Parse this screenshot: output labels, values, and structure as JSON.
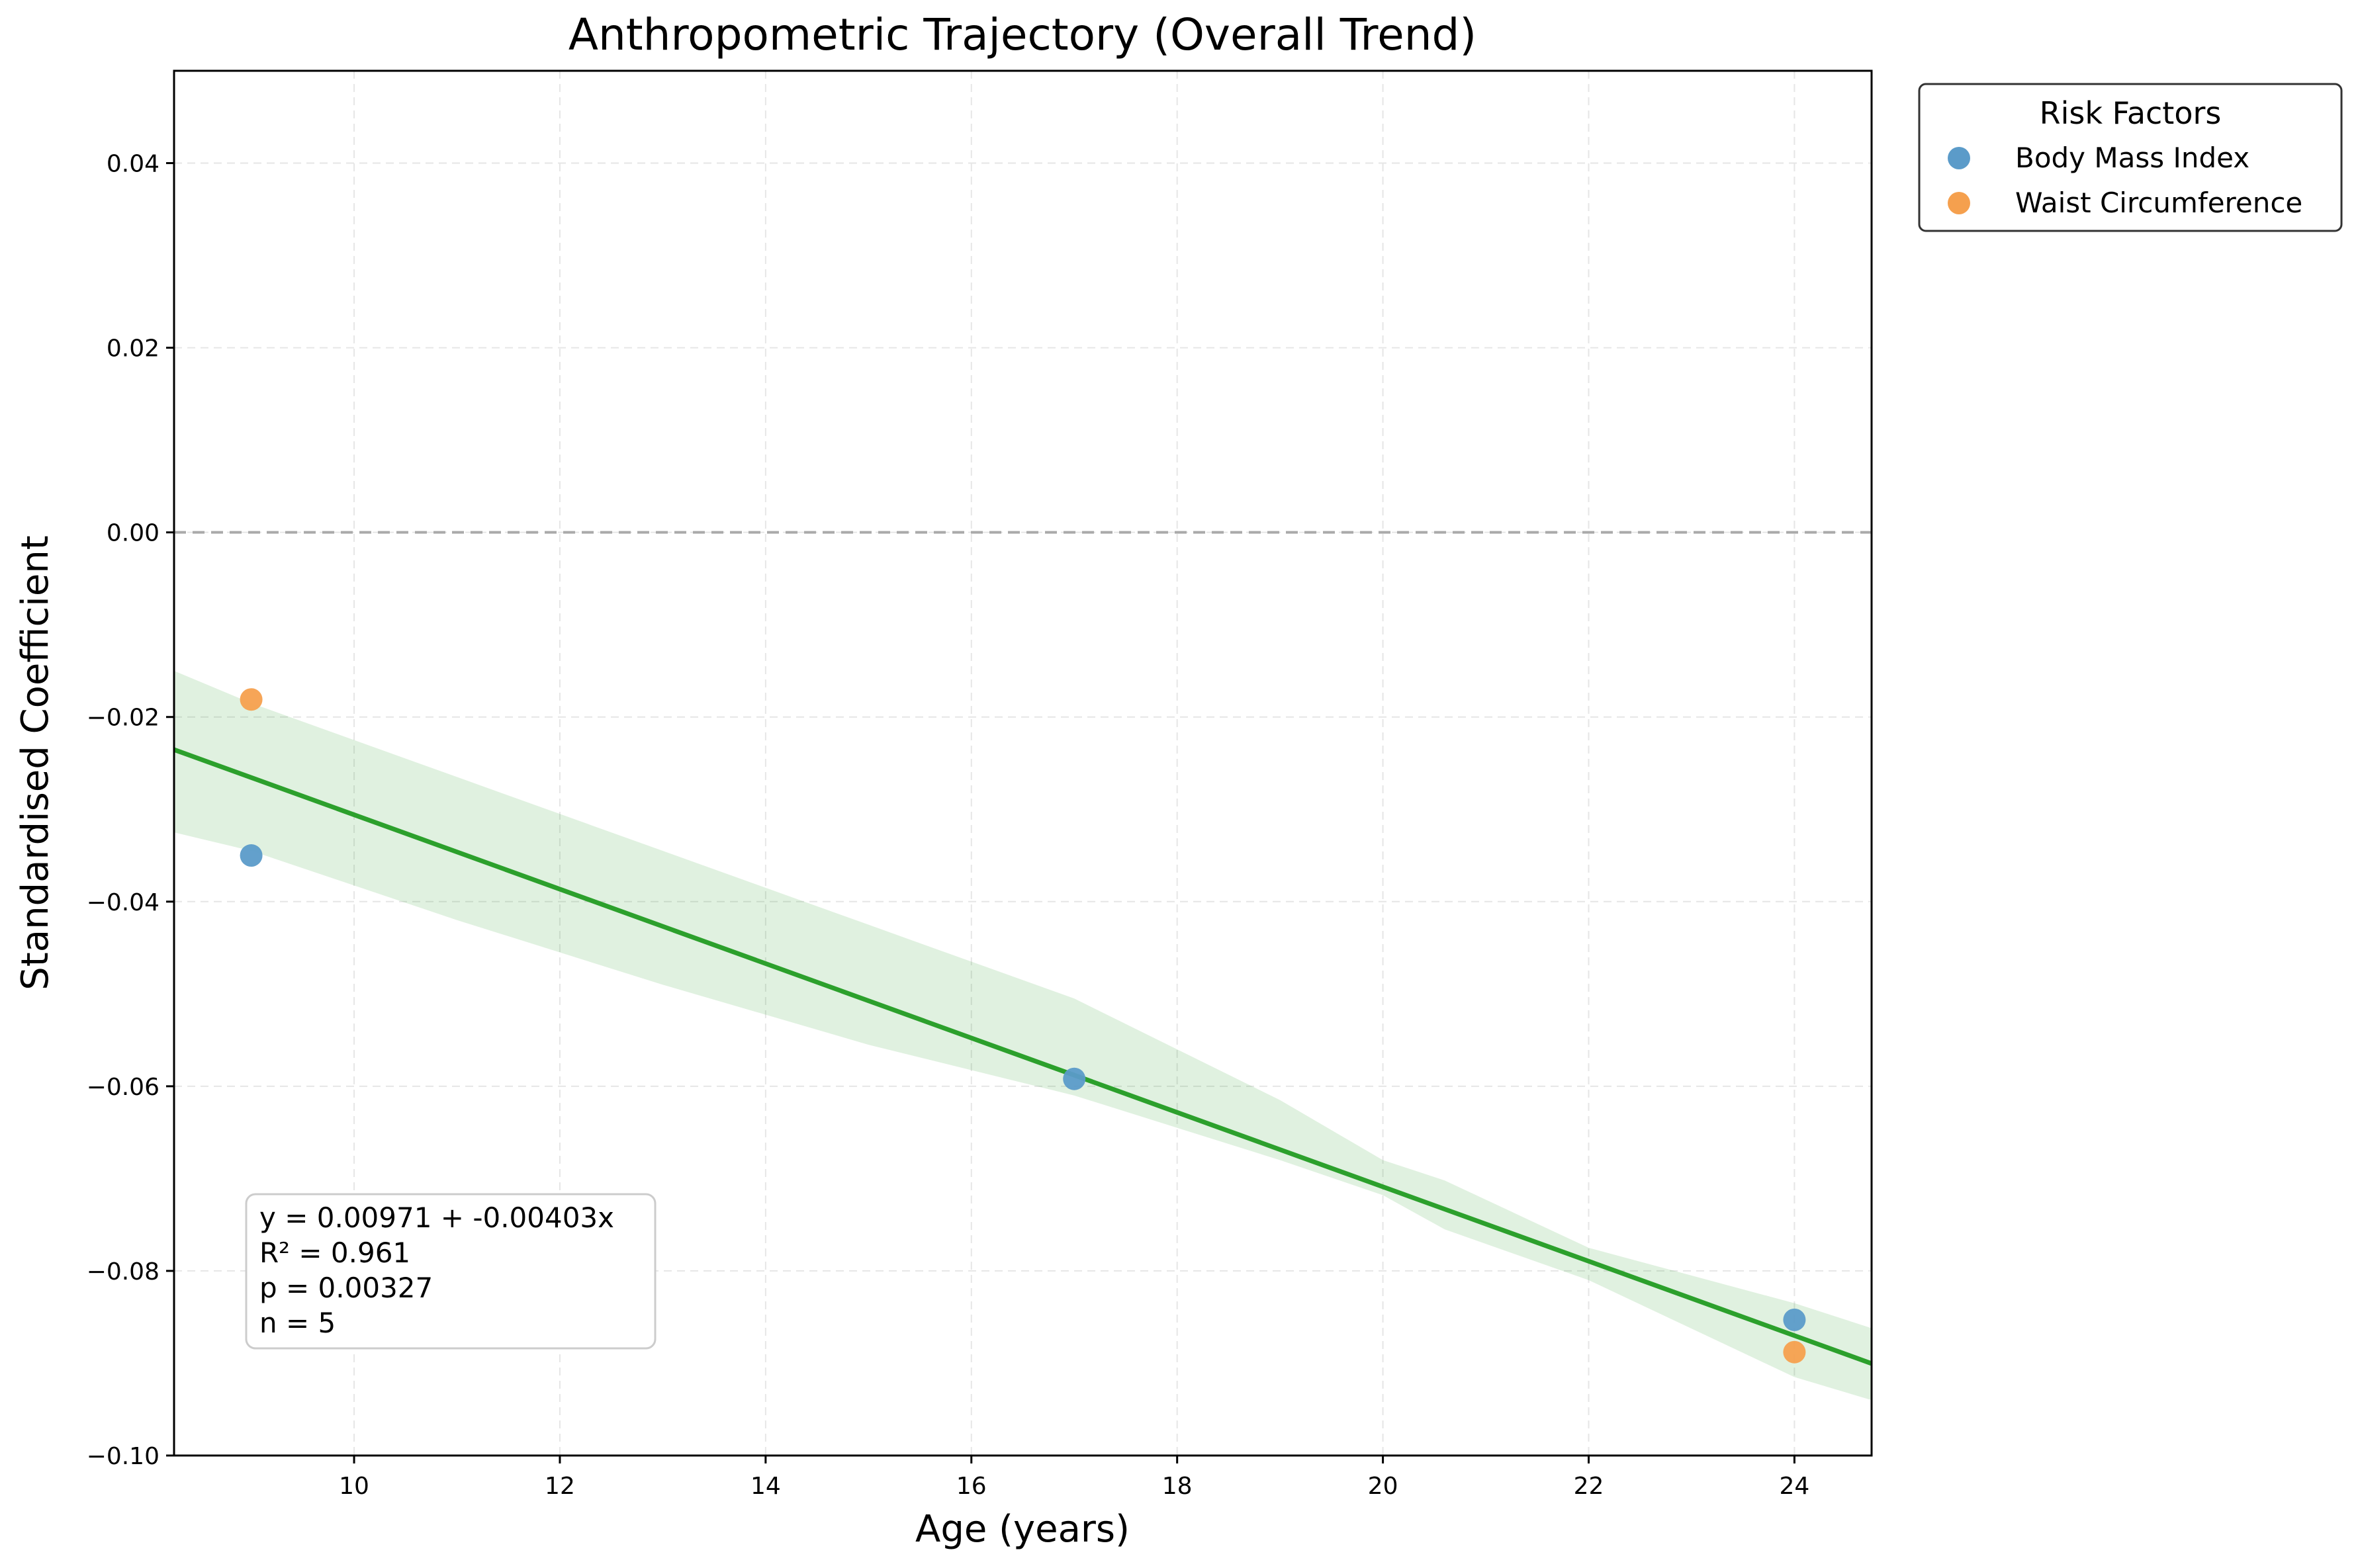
{
  "chart_data": {
    "type": "scatter",
    "title": "Anthropometric Trajectory (Overall Trend)",
    "xlabel": "Age (years)",
    "ylabel": "Standardised Coefficient",
    "xlim": [
      8.25,
      24.75
    ],
    "ylim": [
      -0.1,
      0.05
    ],
    "x_ticks": [
      10,
      12,
      14,
      16,
      18,
      20,
      22,
      24
    ],
    "x_tick_labels": [
      "10",
      "12",
      "14",
      "16",
      "18",
      "20",
      "22",
      "24"
    ],
    "y_ticks": [
      0.04,
      0.02,
      0.0,
      -0.02,
      -0.04,
      -0.06,
      -0.08,
      -0.1
    ],
    "y_tick_labels": [
      "0.04",
      "0.02",
      "0.00",
      "−0.02",
      "−0.04",
      "−0.06",
      "−0.08",
      "−0.10"
    ],
    "grid": true,
    "legend": {
      "title": "Risk Factors",
      "placement": "outside upper right"
    },
    "series": [
      {
        "name": "Body Mass Index",
        "color": "#5b9bc9",
        "points": [
          {
            "x": 9,
            "y": -0.035
          },
          {
            "x": 17,
            "y": -0.0592
          },
          {
            "x": 24,
            "y": -0.0853
          }
        ]
      },
      {
        "name": "Waist Circumference",
        "color": "#f5a04e",
        "points": [
          {
            "x": 9,
            "y": -0.0181
          },
          {
            "x": 24,
            "y": -0.0888
          }
        ]
      }
    ],
    "reference_line": {
      "y": 0.0,
      "style": "dashed",
      "color": "#aaaaaa"
    },
    "fit": {
      "intercept": 0.00971,
      "slope": -0.00403,
      "color": "#2ca02c",
      "band_color": "#2ca02c",
      "band_x": [
        8.25,
        9,
        11,
        13,
        15,
        17,
        19,
        20,
        20.6,
        22,
        24,
        24.75
      ],
      "band_upper": [
        -0.015,
        -0.0185,
        -0.0265,
        -0.0345,
        -0.0425,
        -0.0505,
        -0.0615,
        -0.068,
        -0.0702,
        -0.0775,
        -0.0835,
        -0.0862
      ],
      "band_lower": [
        -0.0325,
        -0.0345,
        -0.042,
        -0.049,
        -0.0555,
        -0.061,
        -0.068,
        -0.0718,
        -0.0755,
        -0.081,
        -0.0915,
        -0.094
      ]
    },
    "annotation": {
      "lines": [
        "y = 0.00971 + -0.00403x",
        "R² = 0.961",
        "p = 0.00327",
        "n = 5"
      ]
    }
  }
}
